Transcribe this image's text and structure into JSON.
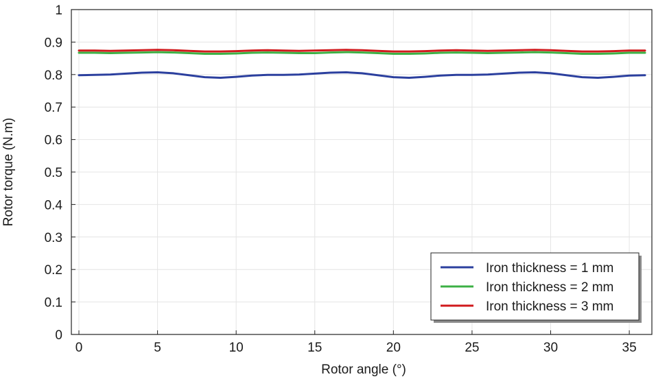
{
  "chart_data": {
    "type": "line",
    "title": "",
    "xlabel": "Rotor angle (°)",
    "ylabel": "Rotor torque (N.m)",
    "xlim": [
      0,
      36
    ],
    "ylim": [
      0,
      1
    ],
    "x_ticks": [
      0,
      5,
      10,
      15,
      20,
      25,
      30,
      35
    ],
    "x_tick_labels": [
      "0",
      "5",
      "10",
      "15",
      "20",
      "25",
      "30",
      "35"
    ],
    "y_ticks": [
      0,
      0.1,
      0.2,
      0.3,
      0.4,
      0.5,
      0.6,
      0.7,
      0.8,
      0.9,
      1
    ],
    "y_tick_labels": [
      "0",
      "0.1",
      "0.2",
      "0.3",
      "0.4",
      "0.5",
      "0.6",
      "0.7",
      "0.8",
      "0.9",
      "1"
    ],
    "grid": true,
    "legend_position": "bottom-right",
    "x": [
      0,
      1,
      2,
      3,
      4,
      5,
      6,
      7,
      8,
      9,
      10,
      11,
      12,
      13,
      14,
      15,
      16,
      17,
      18,
      19,
      20,
      21,
      22,
      23,
      24,
      25,
      26,
      27,
      28,
      29,
      30,
      31,
      32,
      33,
      34,
      35,
      36
    ],
    "series": [
      {
        "name": "Iron thickness = 1 mm",
        "color": "#2b3f9e",
        "values": [
          0.798,
          0.799,
          0.8,
          0.803,
          0.806,
          0.807,
          0.804,
          0.798,
          0.792,
          0.79,
          0.793,
          0.797,
          0.799,
          0.799,
          0.8,
          0.803,
          0.806,
          0.807,
          0.804,
          0.798,
          0.792,
          0.79,
          0.793,
          0.797,
          0.799,
          0.799,
          0.8,
          0.803,
          0.806,
          0.807,
          0.804,
          0.798,
          0.792,
          0.79,
          0.793,
          0.797,
          0.798
        ]
      },
      {
        "name": "Iron thickness = 2 mm",
        "color": "#3cb044",
        "values": [
          0.867,
          0.867,
          0.866,
          0.867,
          0.868,
          0.869,
          0.868,
          0.866,
          0.864,
          0.864,
          0.865,
          0.867,
          0.868,
          0.867,
          0.866,
          0.866,
          0.868,
          0.869,
          0.868,
          0.866,
          0.864,
          0.864,
          0.865,
          0.867,
          0.868,
          0.867,
          0.866,
          0.867,
          0.868,
          0.869,
          0.868,
          0.866,
          0.864,
          0.864,
          0.865,
          0.867,
          0.867
        ]
      },
      {
        "name": "Iron thickness = 3 mm",
        "color": "#d0191c",
        "values": [
          0.874,
          0.874,
          0.873,
          0.874,
          0.875,
          0.876,
          0.875,
          0.873,
          0.871,
          0.871,
          0.872,
          0.874,
          0.875,
          0.874,
          0.873,
          0.874,
          0.875,
          0.876,
          0.875,
          0.873,
          0.871,
          0.871,
          0.872,
          0.874,
          0.875,
          0.874,
          0.873,
          0.874,
          0.875,
          0.876,
          0.875,
          0.873,
          0.871,
          0.871,
          0.872,
          0.874,
          0.874
        ]
      }
    ]
  }
}
